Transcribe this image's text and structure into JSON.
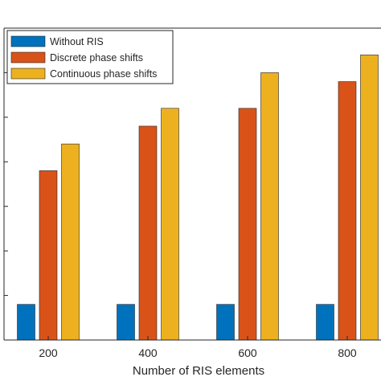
{
  "chart_data": {
    "type": "bar",
    "title": "",
    "xlabel": "Number of RIS elements",
    "ylabel": "",
    "categories": [
      "200",
      "400",
      "600",
      "800"
    ],
    "ylim": [
      0,
      7
    ],
    "y_ticks_count": 7,
    "y_tick_labels_visible": false,
    "grid": false,
    "legend_position": "top-left",
    "series": [
      {
        "name": "Without RIS",
        "color": "#0072BD",
        "values": [
          0.8,
          0.8,
          0.8,
          0.8
        ]
      },
      {
        "name": "Discrete phase shifts",
        "color": "#D95319",
        "values": [
          3.8,
          4.8,
          5.2,
          5.8
        ]
      },
      {
        "name": "Continuous phase shifts",
        "color": "#EDB120",
        "values": [
          4.4,
          5.2,
          6.0,
          6.4
        ]
      }
    ]
  }
}
